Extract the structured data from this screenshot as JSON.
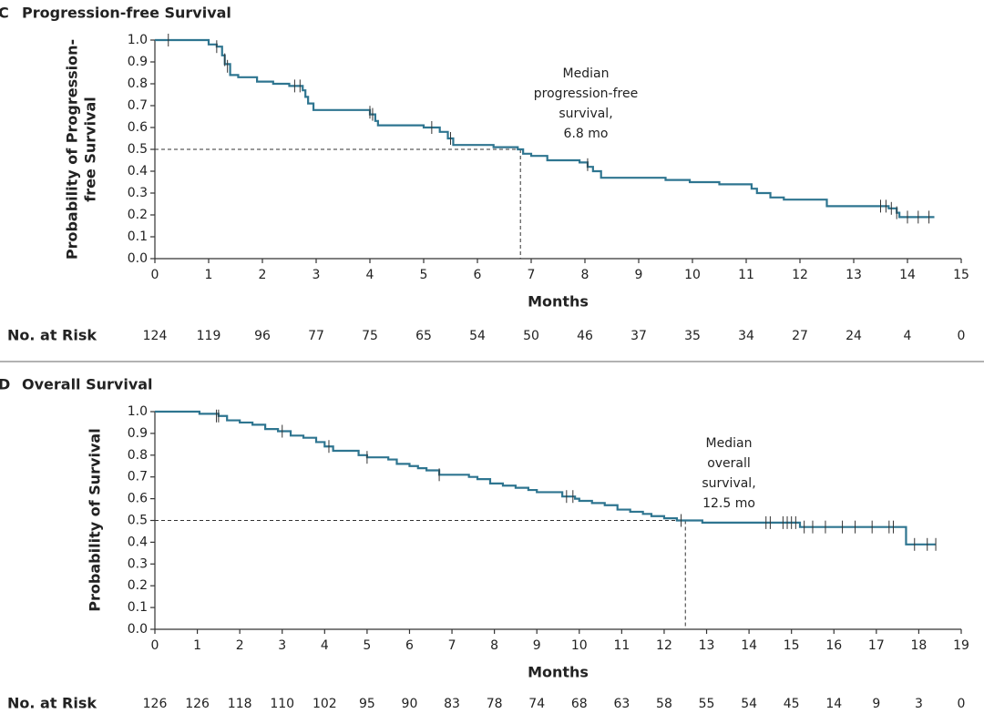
{
  "chart_data": [
    {
      "type": "line",
      "panel": "C",
      "title": "Progression-free Survival",
      "ylabel": [
        "Probability of Progression-",
        "free Survival"
      ],
      "xlabel": "Months",
      "xlim": [
        0,
        15
      ],
      "xticks": [
        0,
        1,
        2,
        3,
        4,
        5,
        6,
        7,
        8,
        9,
        10,
        11,
        12,
        13,
        14,
        15
      ],
      "ylim": [
        0,
        1
      ],
      "yticks": [
        {
          "value": 0,
          "label": "0.0"
        },
        0.1,
        0.2,
        0.3,
        0.4,
        0.5,
        0.6,
        0.7,
        0.8,
        0.9,
        {
          "value": 1,
          "label": "1.0"
        }
      ],
      "color": "#2e7590",
      "step": true,
      "x": [
        0,
        1.0,
        1.15,
        1.25,
        1.3,
        1.4,
        1.55,
        1.9,
        2.2,
        2.5,
        2.75,
        2.8,
        2.85,
        2.95,
        4.0,
        4.1,
        4.15,
        5.0,
        5.3,
        5.45,
        5.55,
        6.3,
        6.75,
        6.85,
        7.0,
        7.3,
        7.9,
        8.05,
        8.15,
        8.3,
        9.5,
        9.95,
        10.5,
        11.1,
        11.2,
        11.45,
        11.7,
        12.5,
        13.65,
        13.8,
        13.85,
        14.5
      ],
      "values": [
        1.0,
        0.98,
        0.97,
        0.93,
        0.89,
        0.84,
        0.83,
        0.81,
        0.8,
        0.79,
        0.77,
        0.74,
        0.71,
        0.68,
        0.66,
        0.63,
        0.61,
        0.6,
        0.58,
        0.55,
        0.52,
        0.51,
        0.5,
        0.48,
        0.47,
        0.45,
        0.44,
        0.42,
        0.4,
        0.37,
        0.36,
        0.35,
        0.34,
        0.32,
        0.3,
        0.28,
        0.27,
        0.24,
        0.23,
        0.21,
        0.19,
        0.19
      ],
      "censor_x": [
        0.25,
        1.15,
        1.3,
        1.35,
        2.6,
        2.7,
        4.0,
        4.05,
        5.15,
        5.5,
        8.05,
        13.5,
        13.6,
        13.7,
        13.8,
        14.0,
        14.2,
        14.4
      ],
      "censor_y": [
        1.0,
        0.97,
        0.91,
        0.88,
        0.79,
        0.79,
        0.67,
        0.66,
        0.6,
        0.55,
        0.43,
        0.24,
        0.24,
        0.23,
        0.21,
        0.19,
        0.19,
        0.19
      ],
      "median_x": 6.8,
      "median_y": 0.5,
      "annotation": [
        "Median",
        "progression-free",
        "survival,",
        "6.8 mo"
      ],
      "risk_label": "No. at Risk",
      "at_risk": [
        124,
        119,
        96,
        77,
        75,
        65,
        54,
        50,
        46,
        37,
        35,
        34,
        27,
        24,
        4,
        0
      ]
    },
    {
      "type": "line",
      "panel": "D",
      "title": "Overall Survival",
      "ylabel": [
        "Probability of Survival"
      ],
      "xlabel": "Months",
      "xlim": [
        0,
        19
      ],
      "xticks": [
        0,
        1,
        2,
        3,
        4,
        5,
        6,
        7,
        8,
        9,
        10,
        11,
        12,
        13,
        14,
        15,
        16,
        17,
        18,
        19
      ],
      "ylim": [
        0,
        1
      ],
      "yticks": [
        {
          "value": 0,
          "label": "0.0"
        },
        0.1,
        0.2,
        0.3,
        0.4,
        0.5,
        0.6,
        0.7,
        0.8,
        0.9,
        {
          "value": 1,
          "label": "1.0"
        }
      ],
      "color": "#2e7590",
      "step": true,
      "x": [
        0,
        1.05,
        1.5,
        1.7,
        2.0,
        2.3,
        2.6,
        2.9,
        3.2,
        3.5,
        3.8,
        4.0,
        4.2,
        4.8,
        5.0,
        5.5,
        5.7,
        6.0,
        6.2,
        6.4,
        6.7,
        7.4,
        7.6,
        7.9,
        8.2,
        8.5,
        8.8,
        9.0,
        9.6,
        9.9,
        10.0,
        10.3,
        10.6,
        10.9,
        11.2,
        11.5,
        11.7,
        12.0,
        12.3,
        12.9,
        15.2,
        17.7,
        18.4
      ],
      "values": [
        1.0,
        0.99,
        0.98,
        0.96,
        0.95,
        0.94,
        0.92,
        0.91,
        0.89,
        0.88,
        0.86,
        0.84,
        0.82,
        0.8,
        0.79,
        0.78,
        0.76,
        0.75,
        0.74,
        0.73,
        0.71,
        0.7,
        0.69,
        0.67,
        0.66,
        0.65,
        0.64,
        0.63,
        0.61,
        0.6,
        0.59,
        0.58,
        0.57,
        0.55,
        0.54,
        0.53,
        0.52,
        0.51,
        0.5,
        0.49,
        0.47,
        0.39,
        0.39
      ],
      "censor_x": [
        1.45,
        1.5,
        3.0,
        4.1,
        5.0,
        6.7,
        9.7,
        9.85,
        12.4,
        14.4,
        14.5,
        14.8,
        14.9,
        15.0,
        15.1,
        15.3,
        15.5,
        15.8,
        16.2,
        16.5,
        16.9,
        17.3,
        17.4,
        17.9,
        18.2,
        18.4
      ],
      "censor_y": [
        0.98,
        0.98,
        0.91,
        0.84,
        0.79,
        0.71,
        0.61,
        0.61,
        0.5,
        0.49,
        0.49,
        0.49,
        0.49,
        0.49,
        0.49,
        0.47,
        0.47,
        0.47,
        0.47,
        0.47,
        0.47,
        0.47,
        0.47,
        0.39,
        0.39,
        0.39
      ],
      "median_x": 12.5,
      "median_y": 0.5,
      "annotation": [
        "Median",
        "overall",
        "survival,",
        "12.5 mo"
      ],
      "risk_label": "No. at Risk",
      "at_risk": [
        126,
        126,
        118,
        110,
        102,
        95,
        90,
        83,
        78,
        74,
        68,
        63,
        58,
        55,
        54,
        45,
        14,
        9,
        3,
        0
      ]
    }
  ]
}
